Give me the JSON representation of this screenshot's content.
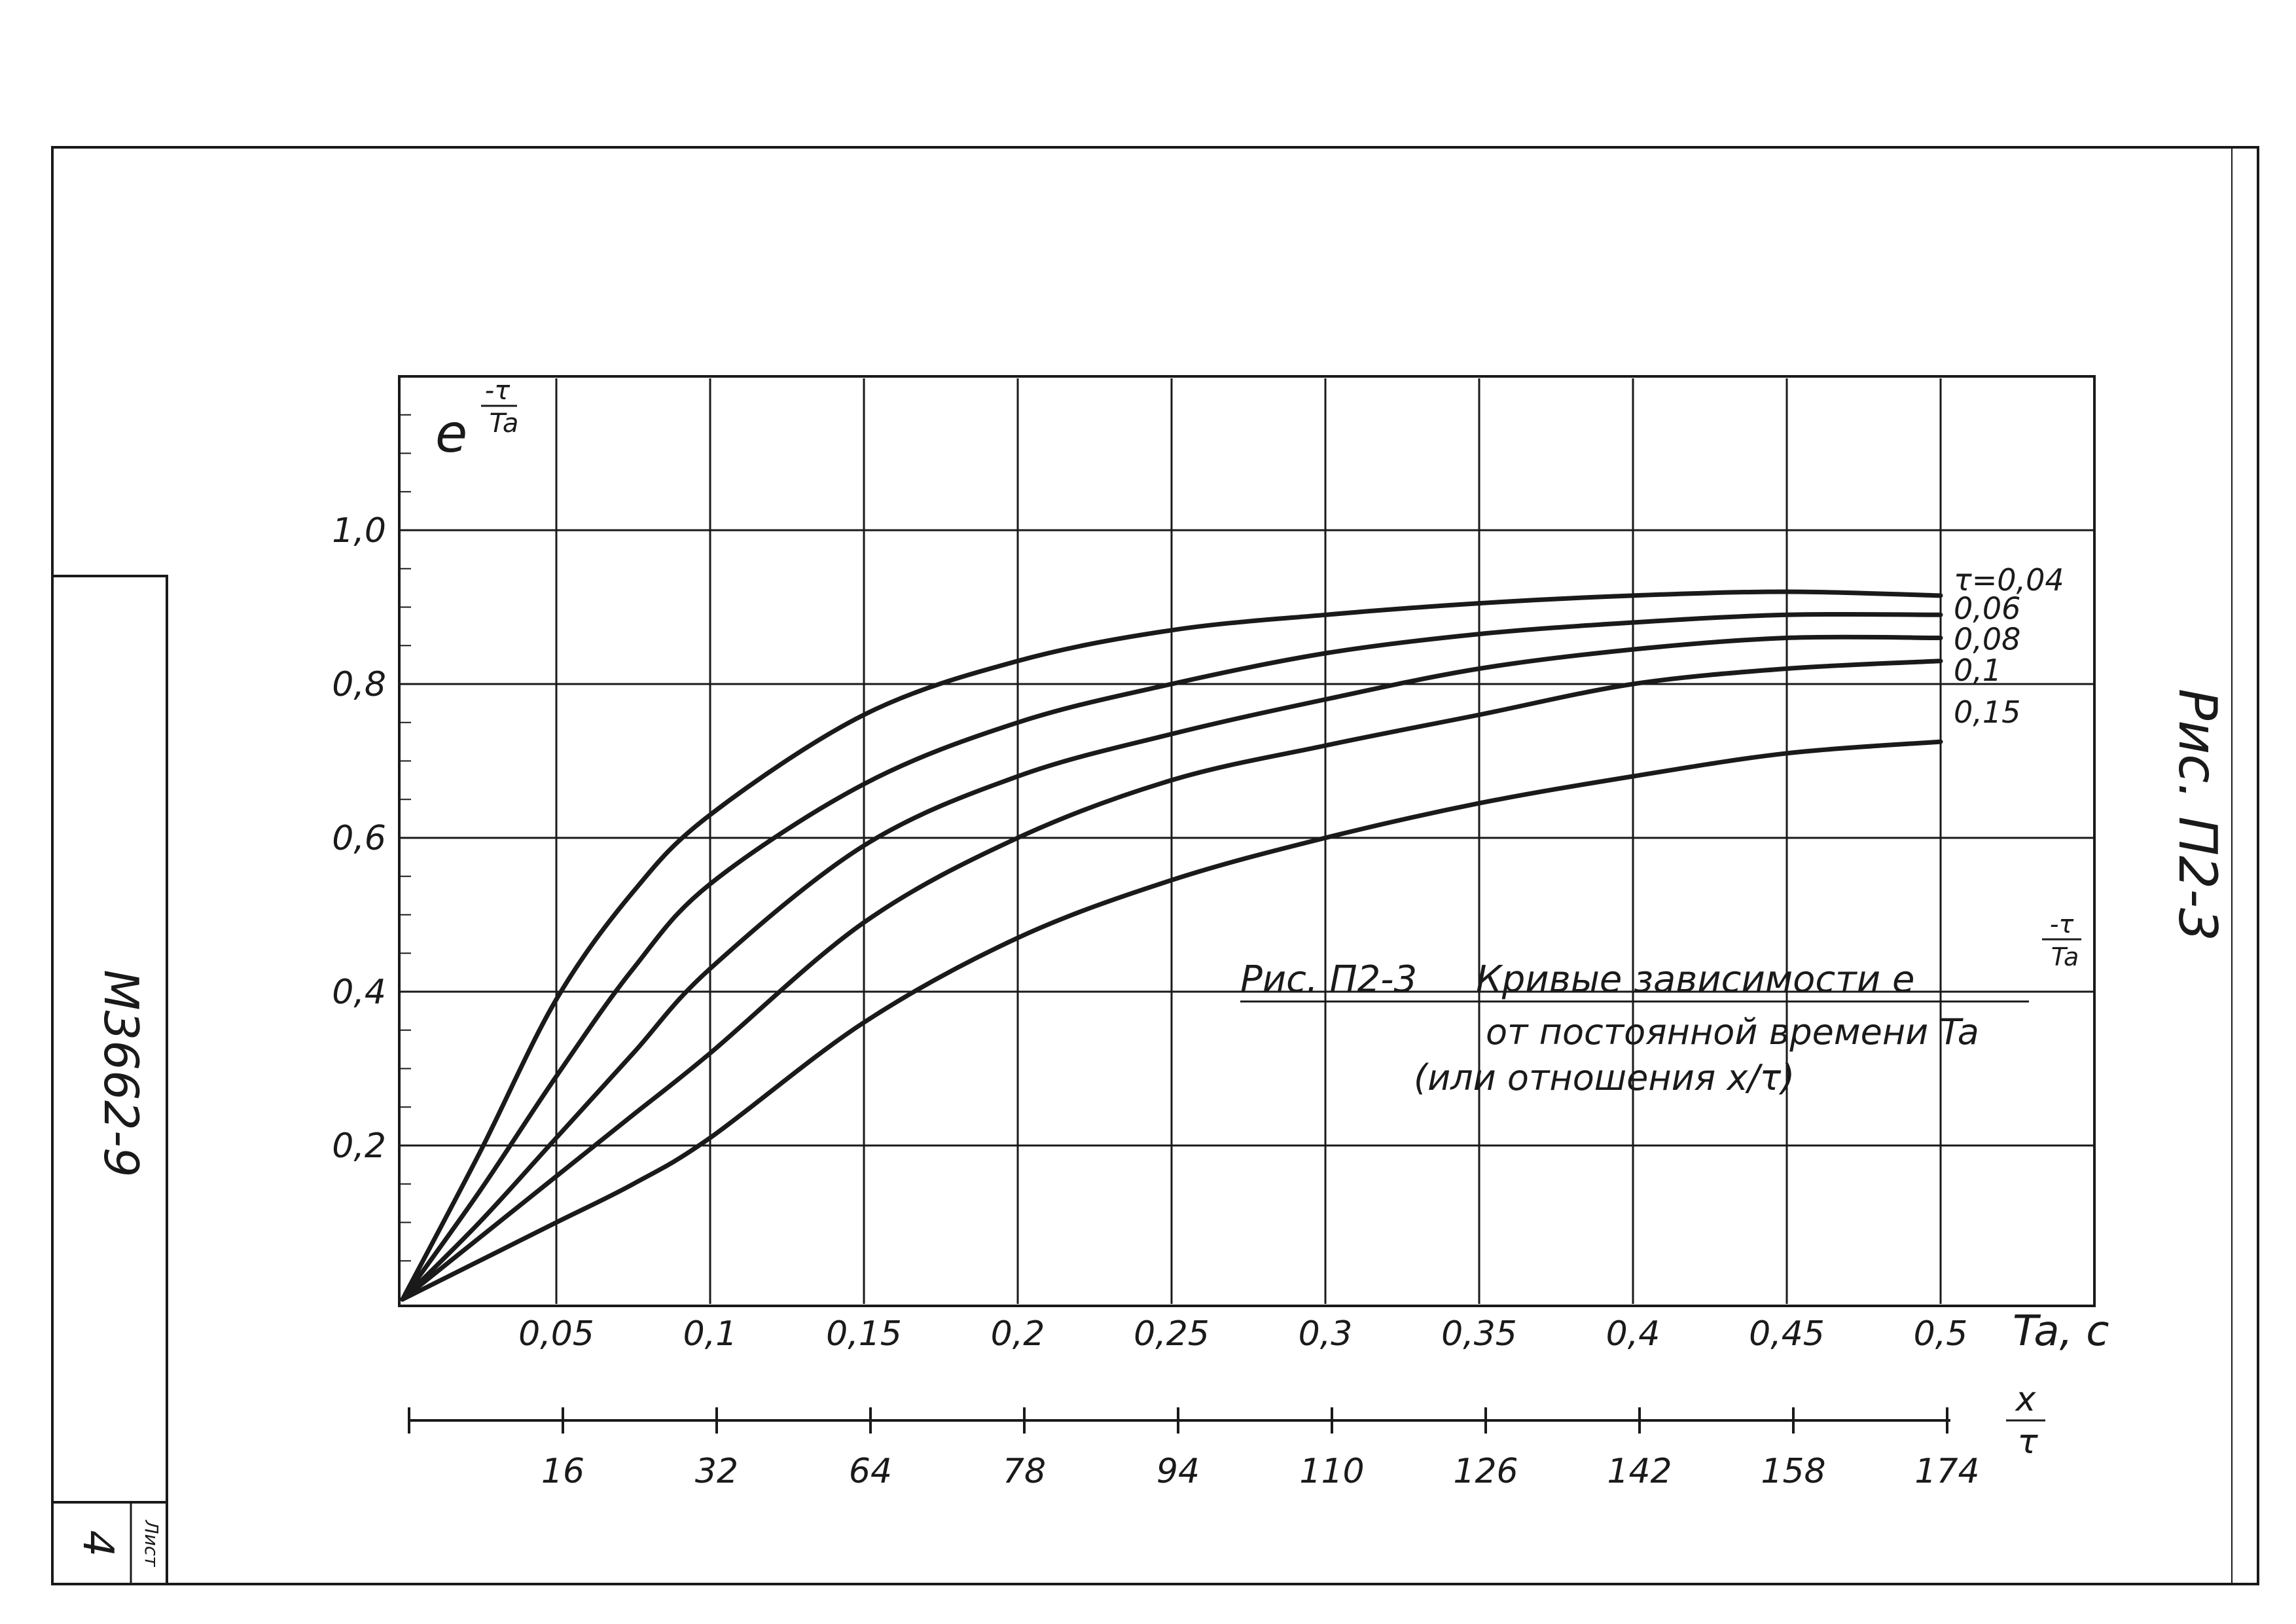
{
  "document": {
    "doc_code": "М3662-9",
    "sheet_label": "Лист",
    "sheet_number": "4",
    "side_figure_label": "Рис. П2-3"
  },
  "caption": {
    "line1_prefix": "Рис. П2-3",
    "line1_text": "Кривые зависимости e",
    "line1_exponent_num": "-τ",
    "line1_exponent_den": "Ta",
    "line2": "от постоянной времени Ta",
    "line3": "(или отношения x/τ)"
  },
  "colors": {
    "ink": "#1a1a1a",
    "grid": "#1a1a1a",
    "paper": "#ffffff"
  },
  "chart_data": {
    "type": "line",
    "title": "",
    "ylabel": "e",
    "ylabel_exponent_num": "-τ",
    "ylabel_exponent_den": "Ta",
    "xlabel": "Ta, c",
    "secondary_xlabel_num": "x",
    "secondary_xlabel_den": "τ",
    "xlim": [
      0,
      0.55
    ],
    "ylim": [
      0,
      1.2
    ],
    "grid": true,
    "x_ticks": [
      0.05,
      0.1,
      0.15,
      0.2,
      0.25,
      0.3,
      0.35,
      0.4,
      0.45,
      0.5
    ],
    "x_tick_labels": [
      "0,05",
      "0,1",
      "0,15",
      "0,2",
      "0,25",
      "0,3",
      "0,35",
      "0,4",
      "0,45",
      "0,5"
    ],
    "y_ticks": [
      0.2,
      0.4,
      0.6,
      0.8,
      1.0
    ],
    "y_tick_labels": [
      "0,2",
      "0,4",
      "0,6",
      "0,8",
      "1,0"
    ],
    "secondary_x_ticks": [
      0.05,
      0.1,
      0.15,
      0.2,
      0.25,
      0.3,
      0.35,
      0.4,
      0.45,
      0.5
    ],
    "secondary_x_tick_labels": [
      "16",
      "32",
      "64",
      "78",
      "94",
      "110",
      "126",
      "142",
      "158",
      "174"
    ],
    "series": [
      {
        "name": "τ=0,04",
        "x": [
          0,
          0.025,
          0.05,
          0.075,
          0.1,
          0.15,
          0.2,
          0.25,
          0.3,
          0.35,
          0.4,
          0.45,
          0.5
        ],
        "y": [
          0,
          0.19,
          0.39,
          0.53,
          0.63,
          0.76,
          0.83,
          0.87,
          0.89,
          0.905,
          0.915,
          0.92,
          0.915
        ]
      },
      {
        "name": "0,06",
        "x": [
          0,
          0.025,
          0.05,
          0.075,
          0.1,
          0.15,
          0.2,
          0.25,
          0.3,
          0.35,
          0.4,
          0.45,
          0.5
        ],
        "y": [
          0,
          0.14,
          0.29,
          0.43,
          0.54,
          0.67,
          0.75,
          0.8,
          0.84,
          0.865,
          0.88,
          0.89,
          0.89
        ]
      },
      {
        "name": "0,08",
        "x": [
          0,
          0.025,
          0.05,
          0.075,
          0.1,
          0.15,
          0.2,
          0.25,
          0.3,
          0.35,
          0.4,
          0.45,
          0.5
        ],
        "y": [
          0,
          0.1,
          0.21,
          0.32,
          0.43,
          0.59,
          0.68,
          0.735,
          0.78,
          0.82,
          0.845,
          0.86,
          0.86
        ]
      },
      {
        "name": "0,1",
        "x": [
          0,
          0.025,
          0.05,
          0.075,
          0.1,
          0.15,
          0.2,
          0.25,
          0.3,
          0.35,
          0.4,
          0.45,
          0.5
        ],
        "y": [
          0,
          0.08,
          0.16,
          0.24,
          0.32,
          0.49,
          0.6,
          0.675,
          0.72,
          0.76,
          0.8,
          0.82,
          0.83
        ]
      },
      {
        "name": "0,15",
        "x": [
          0,
          0.025,
          0.05,
          0.075,
          0.1,
          0.15,
          0.2,
          0.25,
          0.3,
          0.35,
          0.4,
          0.45,
          0.5
        ],
        "y": [
          0,
          0.05,
          0.1,
          0.15,
          0.21,
          0.36,
          0.47,
          0.545,
          0.6,
          0.645,
          0.68,
          0.71,
          0.725
        ]
      }
    ]
  }
}
